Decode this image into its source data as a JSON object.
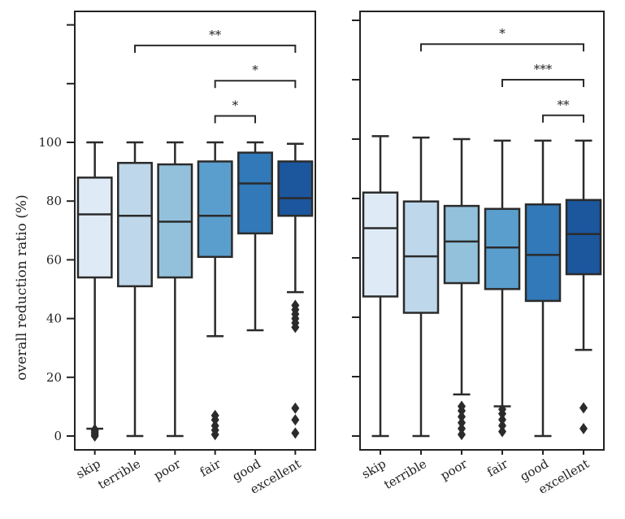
{
  "chart_data": [
    {
      "type": "box",
      "ylabel": "overall reduction ratio (%)",
      "yticks": [
        0,
        20,
        40,
        60,
        80,
        100
      ],
      "categories": [
        "skip",
        "terrible",
        "poor",
        "fair",
        "good",
        "excellent"
      ],
      "colors": [
        "#deebf7",
        "#bed7ea",
        "#93c1dc",
        "#5a9ecd",
        "#3179b8",
        "#1c569d"
      ],
      "boxes": [
        {
          "whisker_low": 2.5,
          "q1": 54,
          "median": 75.5,
          "q3": 88,
          "whisker_high": 100,
          "outliers": [
            0,
            0.6,
            1.2,
            1.8,
            2.2
          ]
        },
        {
          "whisker_low": 0,
          "q1": 51,
          "median": 75,
          "q3": 93,
          "whisker_high": 100,
          "outliers": []
        },
        {
          "whisker_low": 0,
          "q1": 54,
          "median": 73,
          "q3": 92.5,
          "whisker_high": 100,
          "outliers": []
        },
        {
          "whisker_low": 34,
          "q1": 61,
          "median": 75,
          "q3": 93.5,
          "whisker_high": 100,
          "outliers": [
            0.5,
            2,
            3.5,
            5.5,
            7
          ]
        },
        {
          "whisker_low": 36,
          "q1": 69,
          "median": 86,
          "q3": 96.5,
          "whisker_high": 100,
          "outliers": []
        },
        {
          "whisker_low": 49,
          "q1": 75,
          "median": 81,
          "q3": 93.5,
          "whisker_high": 99.5,
          "outliers": [
            1,
            5.5,
            9.5,
            37,
            38.5,
            40,
            41.5,
            43,
            44.5
          ]
        }
      ],
      "significance": [
        {
          "from": "terrible",
          "to": "excellent",
          "level": 133,
          "label": "**"
        },
        {
          "from": "fair",
          "to": "excellent",
          "level": 121,
          "label": "*"
        },
        {
          "from": "fair",
          "to": "good",
          "level": 109,
          "label": "*"
        }
      ]
    },
    {
      "type": "box",
      "ylabel": "",
      "categories": [
        "skip",
        "terrible",
        "poor",
        "fair",
        "good",
        "excellent"
      ],
      "colors": [
        "#deebf7",
        "#bed7ea",
        "#93c1dc",
        "#5a9ecd",
        "#3179b8",
        "#1c569d"
      ],
      "boxes": [
        {
          "whisker_low": 0,
          "q1": 47,
          "median": 70,
          "q3": 82,
          "whisker_high": 101,
          "outliers": []
        },
        {
          "whisker_low": 0,
          "q1": 41.5,
          "median": 60.5,
          "q3": 79,
          "whisker_high": 100.5,
          "outliers": []
        },
        {
          "whisker_low": 14,
          "q1": 51.5,
          "median": 65.5,
          "q3": 77.5,
          "whisker_high": 100,
          "outliers": [
            0.5,
            2.5,
            4.5,
            6.5,
            8.5,
            10
          ]
        },
        {
          "whisker_low": 10,
          "q1": 49.5,
          "median": 63.5,
          "q3": 76.5,
          "whisker_high": 99.5,
          "outliers": [
            1.5,
            3.5,
            5.5,
            7.5,
            9
          ]
        },
        {
          "whisker_low": 0,
          "q1": 45.5,
          "median": 61,
          "q3": 78,
          "whisker_high": 99.5,
          "outliers": []
        },
        {
          "whisker_low": 29,
          "q1": 54.5,
          "median": 68,
          "q3": 79.5,
          "whisker_high": 99.5,
          "outliers": [
            2.5,
            9.5
          ]
        }
      ],
      "significance": [
        {
          "from": "terrible",
          "to": "excellent",
          "level": 132,
          "label": "*"
        },
        {
          "from": "fair",
          "to": "excellent",
          "level": 120,
          "label": "***"
        },
        {
          "from": "good",
          "to": "excellent",
          "level": 108,
          "label": "**"
        }
      ]
    }
  ]
}
